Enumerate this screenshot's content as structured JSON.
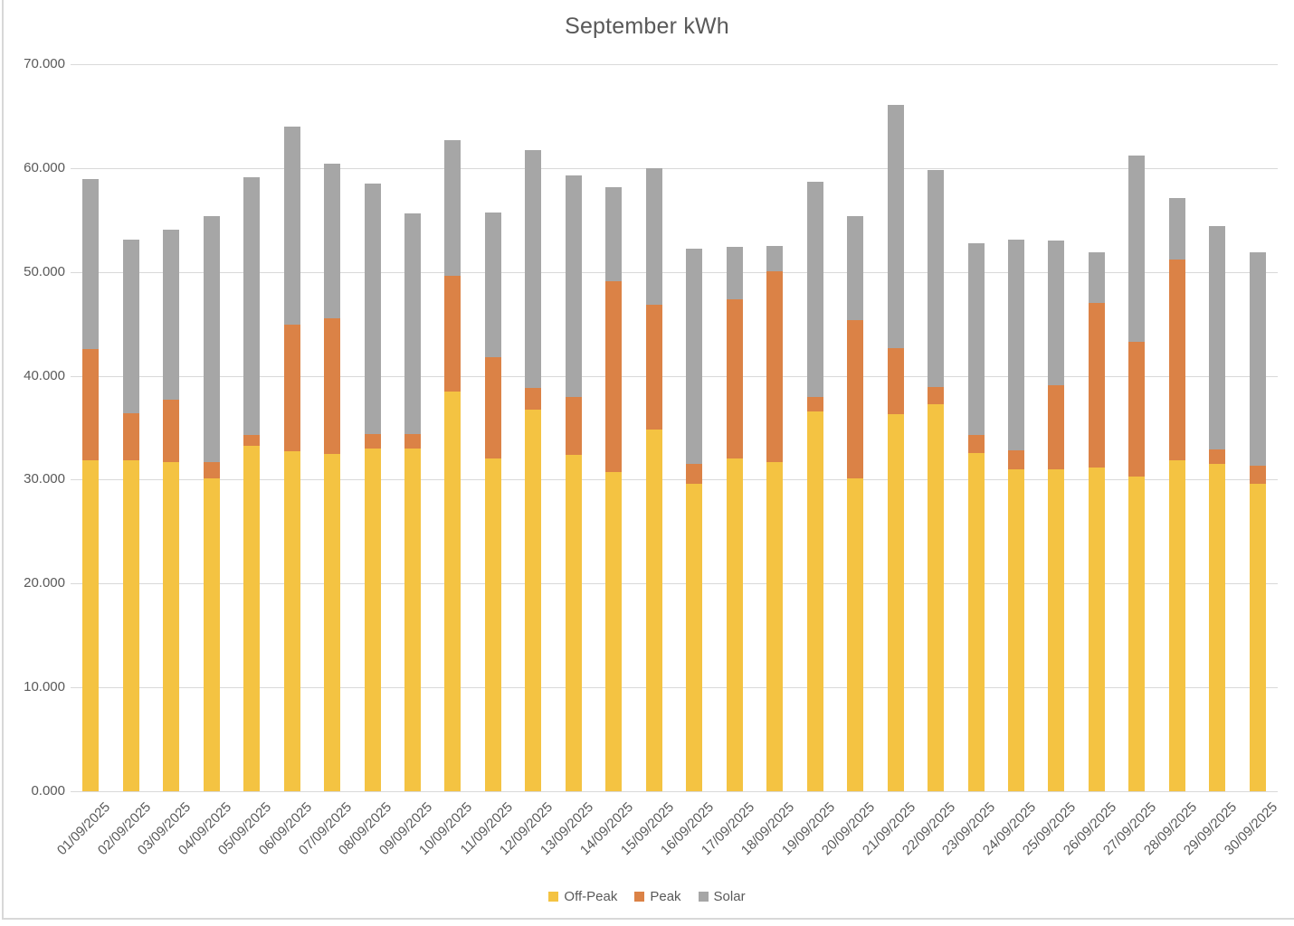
{
  "chart_data": {
    "type": "bar",
    "stacked": true,
    "title": "September kWh",
    "unit": "kWh",
    "grid": true,
    "legend_position": "bottom",
    "ylim": [
      0,
      70000
    ],
    "y_ticks": [
      {
        "value": 0,
        "label": "0.000"
      },
      {
        "value": 10000,
        "label": "10.000"
      },
      {
        "value": 20000,
        "label": "20.000"
      },
      {
        "value": 30000,
        "label": "30.000"
      },
      {
        "value": 40000,
        "label": "40.000"
      },
      {
        "value": 50000,
        "label": "50.000"
      },
      {
        "value": 60000,
        "label": "60.000"
      },
      {
        "value": 70000,
        "label": "70.000"
      }
    ],
    "categories": [
      "01/09/2025",
      "02/09/2025",
      "03/09/2025",
      "04/09/2025",
      "05/09/2025",
      "06/09/2025",
      "07/09/2025",
      "08/09/2025",
      "09/09/2025",
      "10/09/2025",
      "11/09/2025",
      "12/09/2025",
      "13/09/2025",
      "14/09/2025",
      "15/09/2025",
      "16/09/2025",
      "17/09/2025",
      "18/09/2025",
      "19/09/2025",
      "20/09/2025",
      "21/09/2025",
      "22/09/2025",
      "23/09/2025",
      "24/09/2025",
      "25/09/2025",
      "26/09/2025",
      "27/09/2025",
      "28/09/2025",
      "29/09/2025",
      "30/09/2025"
    ],
    "series": [
      {
        "name": "Off-Peak",
        "color": "#F4C342",
        "values": [
          31900,
          31900,
          31700,
          30100,
          33300,
          32700,
          32500,
          33000,
          33000,
          38500,
          32000,
          36700,
          32400,
          30700,
          34800,
          29600,
          32000,
          31700,
          36600,
          30100,
          36300,
          37300,
          32600,
          31000,
          31000,
          31200,
          30300,
          31900,
          31500,
          29600
        ]
      },
      {
        "name": "Peak",
        "color": "#DB8246",
        "values": [
          10700,
          4500,
          6000,
          1600,
          1000,
          12200,
          13000,
          1400,
          1400,
          11100,
          9800,
          2100,
          5600,
          18400,
          12000,
          1900,
          15400,
          18400,
          1400,
          15300,
          6400,
          1600,
          1700,
          1800,
          8100,
          15800,
          13000,
          19300,
          1400,
          1700
        ]
      },
      {
        "name": "Solar",
        "color": "#A6A6A6",
        "values": [
          16300,
          16700,
          16400,
          23700,
          24800,
          19100,
          14900,
          24100,
          21200,
          13100,
          13900,
          22900,
          21300,
          9100,
          13200,
          20700,
          5000,
          2400,
          20700,
          10000,
          23400,
          20900,
          18500,
          20300,
          13900,
          4900,
          17900,
          5900,
          21500,
          20600
        ]
      }
    ],
    "totals": [
      58900,
      53100,
      54100,
      55400,
      59100,
      64000,
      60400,
      58500,
      55600,
      62700,
      55700,
      61700,
      59300,
      58200,
      60000,
      52200,
      52400,
      52500,
      58700,
      55400,
      66100,
      59800,
      52800,
      53100,
      53000,
      51900,
      61200,
      57100,
      54400,
      51900
    ],
    "colors": {
      "gridline": "#D9D9D9",
      "text": "#595959",
      "off_peak": "#F4C342",
      "peak": "#DB8246",
      "solar": "#A6A6A6"
    }
  }
}
